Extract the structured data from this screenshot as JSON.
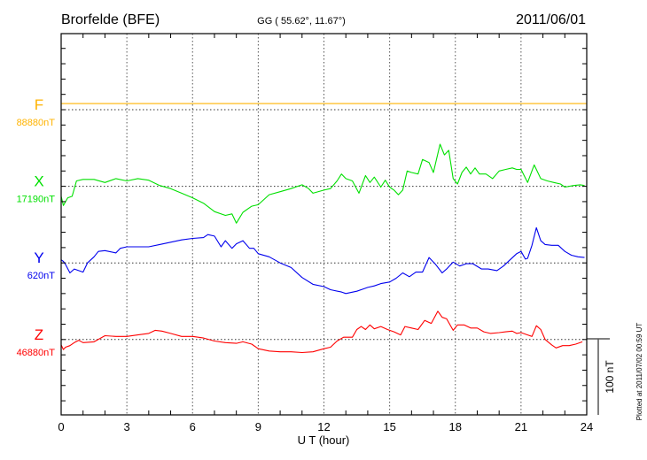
{
  "header": {
    "station": "Brorfelde (BFE)",
    "coords": "GG ( 55.62°,  11.67°)",
    "date": "2011/06/01"
  },
  "footer": {
    "plotted": "Plotted at 2011/07/02 00:59 UT",
    "scale_label": "100 nT"
  },
  "chart_data": {
    "type": "line",
    "title": "Brorfelde (BFE)",
    "xlabel": "U T (hour)",
    "ylabel": "",
    "xlim": [
      0,
      24
    ],
    "xticks": [
      "0",
      "3",
      "6",
      "9",
      "12",
      "15",
      "18",
      "21",
      "24"
    ],
    "grid": true,
    "scale_bar_nT": 100,
    "ytick_step_nT": 20,
    "series": [
      {
        "name": "F",
        "baseline": "88880nT",
        "color": "#ffb300",
        "offset_nT": 0,
        "points": [
          [
            0,
            8
          ],
          [
            24,
            8
          ]
        ]
      },
      {
        "name": "X",
        "baseline": "17190nT",
        "color": "#00e000",
        "offset_nT": 100,
        "points": [
          [
            0,
            -13
          ],
          [
            0.1,
            -25
          ],
          [
            0.3,
            -15
          ],
          [
            0.5,
            -13
          ],
          [
            0.7,
            7
          ],
          [
            1,
            9
          ],
          [
            1.5,
            9
          ],
          [
            2,
            5
          ],
          [
            2.5,
            10
          ],
          [
            3,
            7
          ],
          [
            3.5,
            10
          ],
          [
            4,
            8
          ],
          [
            4.5,
            1
          ],
          [
            5,
            -3
          ],
          [
            5.5,
            -9
          ],
          [
            6,
            -15
          ],
          [
            6.5,
            -22
          ],
          [
            7,
            -33
          ],
          [
            7.5,
            -38
          ],
          [
            7.8,
            -36
          ],
          [
            8,
            -48
          ],
          [
            8.3,
            -34
          ],
          [
            8.7,
            -26
          ],
          [
            9,
            -24
          ],
          [
            9.5,
            -11
          ],
          [
            10,
            -7
          ],
          [
            10.5,
            -3
          ],
          [
            11,
            2
          ],
          [
            11.3,
            -3
          ],
          [
            11.5,
            -9
          ],
          [
            12,
            -5
          ],
          [
            12.3,
            -3
          ],
          [
            12.6,
            7
          ],
          [
            12.8,
            16
          ],
          [
            13,
            10
          ],
          [
            13.3,
            7
          ],
          [
            13.6,
            -9
          ],
          [
            13.9,
            14
          ],
          [
            14.1,
            5
          ],
          [
            14.3,
            12
          ],
          [
            14.6,
            -1
          ],
          [
            14.8,
            8
          ],
          [
            15,
            -1
          ],
          [
            15.2,
            -5
          ],
          [
            15.4,
            -11
          ],
          [
            15.6,
            -5
          ],
          [
            15.8,
            20
          ],
          [
            16,
            18
          ],
          [
            16.3,
            16
          ],
          [
            16.5,
            35
          ],
          [
            16.8,
            31
          ],
          [
            17,
            18
          ],
          [
            17.3,
            55
          ],
          [
            17.5,
            41
          ],
          [
            17.7,
            47
          ],
          [
            17.9,
            10
          ],
          [
            18.1,
            3
          ],
          [
            18.3,
            18
          ],
          [
            18.5,
            25
          ],
          [
            18.7,
            16
          ],
          [
            18.9,
            24
          ],
          [
            19.1,
            16
          ],
          [
            19.4,
            16
          ],
          [
            19.7,
            10
          ],
          [
            20,
            20
          ],
          [
            20.3,
            22
          ],
          [
            20.6,
            24
          ],
          [
            20.8,
            22
          ],
          [
            21,
            22
          ],
          [
            21.3,
            5
          ],
          [
            21.6,
            28
          ],
          [
            21.9,
            10
          ],
          [
            22.2,
            7
          ],
          [
            22.5,
            5
          ],
          [
            22.8,
            3
          ],
          [
            23,
            -1
          ],
          [
            23.4,
            1
          ],
          [
            23.7,
            2
          ],
          [
            23.9,
            1
          ]
        ]
      },
      {
        "name": "Y",
        "baseline": "620nT",
        "color": "#0000ee",
        "offset_nT": 200,
        "points": [
          [
            0,
            4
          ],
          [
            0.1,
            2
          ],
          [
            0.2,
            -2
          ],
          [
            0.4,
            -13
          ],
          [
            0.6,
            -8
          ],
          [
            0.8,
            -10
          ],
          [
            1,
            -12
          ],
          [
            1.2,
            0
          ],
          [
            1.5,
            8
          ],
          [
            1.7,
            15
          ],
          [
            2,
            16
          ],
          [
            2.5,
            13
          ],
          [
            2.7,
            19
          ],
          [
            3,
            21
          ],
          [
            3.5,
            21
          ],
          [
            4,
            21
          ],
          [
            4.5,
            24
          ],
          [
            5,
            27
          ],
          [
            5.5,
            30
          ],
          [
            6,
            32
          ],
          [
            6.5,
            33
          ],
          [
            6.7,
            37
          ],
          [
            7,
            35
          ],
          [
            7.3,
            21
          ],
          [
            7.5,
            29
          ],
          [
            7.8,
            19
          ],
          [
            8,
            25
          ],
          [
            8.3,
            29
          ],
          [
            8.6,
            19
          ],
          [
            8.8,
            19
          ],
          [
            9,
            12
          ],
          [
            9.5,
            8
          ],
          [
            10,
            0
          ],
          [
            10.5,
            -6
          ],
          [
            11,
            -19
          ],
          [
            11.5,
            -28
          ],
          [
            12,
            -31
          ],
          [
            12.3,
            -35
          ],
          [
            12.8,
            -38
          ],
          [
            13,
            -40
          ],
          [
            13.5,
            -37
          ],
          [
            13.8,
            -34
          ],
          [
            14,
            -32
          ],
          [
            14.3,
            -30
          ],
          [
            14.6,
            -27
          ],
          [
            15,
            -25
          ],
          [
            15.3,
            -20
          ],
          [
            15.6,
            -13
          ],
          [
            15.9,
            -18
          ],
          [
            16.2,
            -12
          ],
          [
            16.5,
            -12
          ],
          [
            16.8,
            7
          ],
          [
            17.1,
            -2
          ],
          [
            17.4,
            -13
          ],
          [
            17.6,
            -8
          ],
          [
            17.9,
            1
          ],
          [
            18.2,
            -4
          ],
          [
            18.5,
            -1
          ],
          [
            18.8,
            -1
          ],
          [
            19.2,
            -8
          ],
          [
            19.5,
            -8
          ],
          [
            19.9,
            -10
          ],
          [
            20.2,
            -4
          ],
          [
            20.5,
            4
          ],
          [
            20.8,
            12
          ],
          [
            21,
            15
          ],
          [
            21.2,
            5
          ],
          [
            21.3,
            6
          ],
          [
            21.5,
            23
          ],
          [
            21.7,
            46
          ],
          [
            21.9,
            29
          ],
          [
            22.1,
            24
          ],
          [
            22.4,
            23
          ],
          [
            22.7,
            23
          ],
          [
            23,
            15
          ],
          [
            23.3,
            10
          ],
          [
            23.6,
            8
          ],
          [
            23.9,
            7
          ]
        ]
      },
      {
        "name": "Z",
        "baseline": "46880nT",
        "color": "#ff0000",
        "offset_nT": 300,
        "points": [
          [
            0,
            -7
          ],
          [
            0.1,
            -13
          ],
          [
            0.2,
            -10
          ],
          [
            0.4,
            -8
          ],
          [
            0.6,
            -4
          ],
          [
            0.8,
            -1
          ],
          [
            1,
            -4
          ],
          [
            1.5,
            -3
          ],
          [
            2,
            5
          ],
          [
            2.5,
            4
          ],
          [
            3,
            4
          ],
          [
            3.5,
            6
          ],
          [
            4,
            8
          ],
          [
            4.3,
            12
          ],
          [
            4.6,
            11
          ],
          [
            5,
            8
          ],
          [
            5.5,
            4
          ],
          [
            6,
            4
          ],
          [
            6.5,
            2
          ],
          [
            7,
            -2
          ],
          [
            7.5,
            -4
          ],
          [
            8,
            -5
          ],
          [
            8.3,
            -3
          ],
          [
            8.7,
            -6
          ],
          [
            9,
            -12
          ],
          [
            9.5,
            -15
          ],
          [
            10,
            -16
          ],
          [
            10.5,
            -16
          ],
          [
            11,
            -17
          ],
          [
            11.5,
            -16
          ],
          [
            12,
            -12
          ],
          [
            12.3,
            -10
          ],
          [
            12.6,
            -2
          ],
          [
            12.9,
            3
          ],
          [
            13.3,
            3
          ],
          [
            13.5,
            13
          ],
          [
            13.7,
            17
          ],
          [
            13.9,
            13
          ],
          [
            14.1,
            19
          ],
          [
            14.3,
            14
          ],
          [
            14.6,
            17
          ],
          [
            14.9,
            13
          ],
          [
            15.2,
            10
          ],
          [
            15.5,
            6
          ],
          [
            15.7,
            17
          ],
          [
            16,
            15
          ],
          [
            16.3,
            13
          ],
          [
            16.6,
            25
          ],
          [
            16.9,
            21
          ],
          [
            17.2,
            37
          ],
          [
            17.4,
            29
          ],
          [
            17.6,
            27
          ],
          [
            17.9,
            12
          ],
          [
            18.1,
            19
          ],
          [
            18.4,
            19
          ],
          [
            18.7,
            15
          ],
          [
            19,
            15
          ],
          [
            19.3,
            10
          ],
          [
            19.6,
            8
          ],
          [
            20,
            9
          ],
          [
            20.3,
            10
          ],
          [
            20.6,
            11
          ],
          [
            20.8,
            8
          ],
          [
            21,
            9
          ],
          [
            21.3,
            6
          ],
          [
            21.5,
            4
          ],
          [
            21.7,
            18
          ],
          [
            21.9,
            13
          ],
          [
            22.1,
            0
          ],
          [
            22.4,
            -7
          ],
          [
            22.6,
            -11
          ],
          [
            22.9,
            -8
          ],
          [
            23.2,
            -8
          ],
          [
            23.5,
            -6
          ],
          [
            23.8,
            -3
          ]
        ]
      }
    ]
  }
}
